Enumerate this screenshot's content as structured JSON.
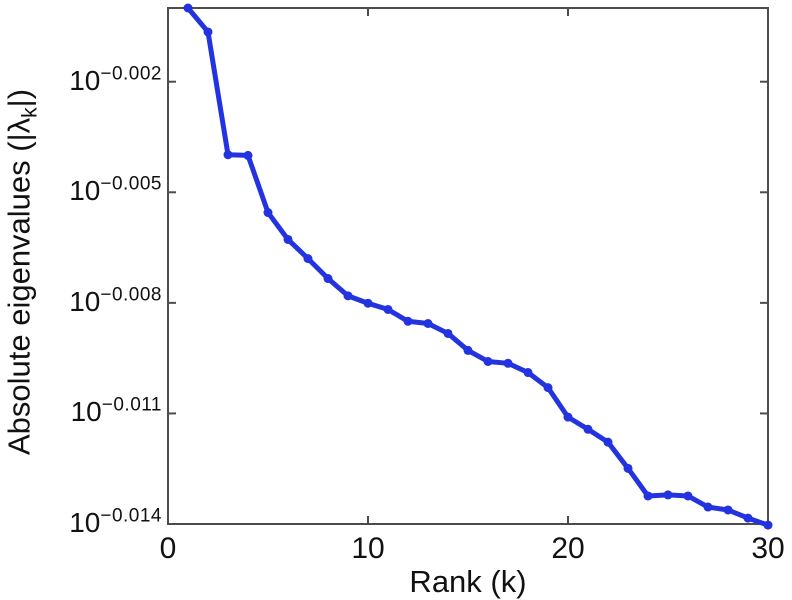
{
  "figure": {
    "background": "#ffffff",
    "axis_color": "#4d4d4d",
    "text_color": "#111111"
  },
  "chart_data": {
    "type": "line",
    "title": "",
    "xlabel": "Rank (k)",
    "ylabel": "Absolute eigenvalues (|λk|)",
    "ylabel_parts": {
      "prefix": "Absolute eigenvalues (|λ",
      "sub": "k",
      "suffix": "|)"
    },
    "y_scale": "log10",
    "series": [
      {
        "name": "absolute-eigenvalues",
        "color": "#2433e0",
        "marker": "circle",
        "line_width": 5,
        "marker_radius": 4.5,
        "x": [
          1,
          2,
          3,
          4,
          5,
          6,
          7,
          8,
          9,
          10,
          11,
          12,
          13,
          14,
          15,
          16,
          17,
          18,
          19,
          20,
          21,
          22,
          23,
          24,
          25,
          26,
          27,
          28,
          29,
          30
        ],
        "y_exponents": [
          0.0,
          -0.00065,
          -0.00398,
          -0.004,
          -0.00555,
          -0.00628,
          -0.0068,
          -0.00734,
          -0.00781,
          -0.00801,
          -0.00818,
          -0.0085,
          -0.00856,
          -0.00883,
          -0.00929,
          -0.00959,
          -0.00964,
          -0.00989,
          -0.0103,
          -0.0111,
          -0.01143,
          -0.01178,
          -0.01249,
          -0.01324,
          -0.01321,
          -0.01324,
          -0.01354,
          -0.01362,
          -0.01384,
          -0.01403
        ],
        "y_values_approx": [
          1.0,
          0.9985,
          0.9908,
          0.9908,
          0.9873,
          0.9857,
          0.9845,
          0.9832,
          0.9822,
          0.9817,
          0.9813,
          0.9806,
          0.9805,
          0.9799,
          0.9789,
          0.9782,
          0.9781,
          0.9775,
          0.9766,
          0.9748,
          0.974,
          0.9732,
          0.9717,
          0.97,
          0.9701,
          0.97,
          0.9693,
          0.9691,
          0.9687,
          0.9682
        ]
      }
    ],
    "xlim": [
      0,
      30
    ],
    "ylim_exponents": [
      -0.014,
      0
    ],
    "x_ticks": [
      0,
      10,
      20,
      30
    ],
    "x_tick_labels": [
      "0",
      "10",
      "20",
      "30"
    ],
    "y_tick_exponents": [
      -0.002,
      -0.005,
      -0.008,
      -0.011,
      -0.014
    ],
    "y_tick_labels": [
      "10^−0.002",
      "10^−0.005",
      "10^−0.008",
      "10^−0.011",
      "10^−0.014"
    ],
    "grid": false,
    "legend": null,
    "tick_direction": "in",
    "box": true
  }
}
